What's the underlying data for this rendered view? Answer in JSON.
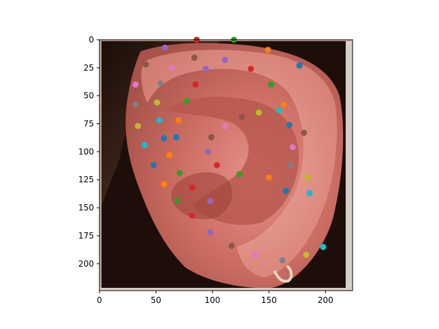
{
  "chart_data": {
    "type": "scatter",
    "title": "",
    "xlabel": "",
    "ylabel": "",
    "xlim": [
      0,
      224
    ],
    "ylim": [
      224,
      0
    ],
    "y_inverted": true,
    "grid": false,
    "legend": "none",
    "background": "image of a human ear (close-up photograph)",
    "xticks": [
      0,
      50,
      100,
      150,
      200
    ],
    "yticks": [
      0,
      25,
      50,
      75,
      100,
      125,
      150,
      175,
      200
    ],
    "palette": [
      "#1f77b4",
      "#ff7f0e",
      "#2ca02c",
      "#d62728",
      "#9467bd",
      "#8c564b",
      "#e377c2",
      "#7f7f7f",
      "#bcbd22",
      "#17becf"
    ],
    "points": [
      {
        "x": 86,
        "y": 0,
        "color": "#d62728"
      },
      {
        "x": 119,
        "y": 0,
        "color": "#2ca02c"
      },
      {
        "x": 58,
        "y": 7,
        "color": "#9467bd"
      },
      {
        "x": 149,
        "y": 9,
        "color": "#ff7f0e"
      },
      {
        "x": 84,
        "y": 16,
        "color": "#8c564b"
      },
      {
        "x": 111,
        "y": 18,
        "color": "#9467bd"
      },
      {
        "x": 41,
        "y": 22,
        "color": "#8c564b"
      },
      {
        "x": 177,
        "y": 23,
        "color": "#1f77b4"
      },
      {
        "x": 64,
        "y": 25,
        "color": "#e377c2"
      },
      {
        "x": 94,
        "y": 26,
        "color": "#9467bd"
      },
      {
        "x": 134,
        "y": 26,
        "color": "#d62728"
      },
      {
        "x": 32,
        "y": 40,
        "color": "#e377c2"
      },
      {
        "x": 54,
        "y": 39,
        "color": "#7f7f7f"
      },
      {
        "x": 85,
        "y": 40,
        "color": "#d62728"
      },
      {
        "x": 152,
        "y": 40,
        "color": "#2ca02c"
      },
      {
        "x": 32,
        "y": 58,
        "color": "#7f7f7f"
      },
      {
        "x": 51,
        "y": 56,
        "color": "#bcbd22"
      },
      {
        "x": 77,
        "y": 55,
        "color": "#2ca02c"
      },
      {
        "x": 163,
        "y": 58,
        "color": "#ff7f0e"
      },
      {
        "x": 159,
        "y": 63,
        "color": "#17becf"
      },
      {
        "x": 141,
        "y": 65,
        "color": "#bcbd22"
      },
      {
        "x": 126,
        "y": 69,
        "color": "#8c564b"
      },
      {
        "x": 53,
        "y": 72,
        "color": "#17becf"
      },
      {
        "x": 70,
        "y": 72,
        "color": "#ff7f0e"
      },
      {
        "x": 34,
        "y": 77,
        "color": "#bcbd22"
      },
      {
        "x": 111,
        "y": 77,
        "color": "#e377c2"
      },
      {
        "x": 168,
        "y": 76,
        "color": "#1f77b4"
      },
      {
        "x": 181,
        "y": 83,
        "color": "#8c564b"
      },
      {
        "x": 57,
        "y": 88,
        "color": "#1f77b4"
      },
      {
        "x": 68,
        "y": 87,
        "color": "#1f77b4"
      },
      {
        "x": 99,
        "y": 87,
        "color": "#8c564b"
      },
      {
        "x": 40,
        "y": 94,
        "color": "#17becf"
      },
      {
        "x": 171,
        "y": 96,
        "color": "#e377c2"
      },
      {
        "x": 96,
        "y": 100,
        "color": "#9467bd"
      },
      {
        "x": 62,
        "y": 103,
        "color": "#ff7f0e"
      },
      {
        "x": 48,
        "y": 112,
        "color": "#1f77b4"
      },
      {
        "x": 104,
        "y": 112,
        "color": "#d62728"
      },
      {
        "x": 169,
        "y": 112,
        "color": "#7f7f7f"
      },
      {
        "x": 71,
        "y": 119,
        "color": "#2ca02c"
      },
      {
        "x": 124,
        "y": 120,
        "color": "#2ca02c"
      },
      {
        "x": 150,
        "y": 123,
        "color": "#ff7f0e"
      },
      {
        "x": 184,
        "y": 123,
        "color": "#bcbd22"
      },
      {
        "x": 57,
        "y": 129,
        "color": "#ff7f0e"
      },
      {
        "x": 82,
        "y": 132,
        "color": "#d62728"
      },
      {
        "x": 165,
        "y": 135,
        "color": "#1f77b4"
      },
      {
        "x": 186,
        "y": 137,
        "color": "#17becf"
      },
      {
        "x": 69,
        "y": 144,
        "color": "#2ca02c"
      },
      {
        "x": 98,
        "y": 144,
        "color": "#9467bd"
      },
      {
        "x": 82,
        "y": 157,
        "color": "#d62728"
      },
      {
        "x": 98,
        "y": 172,
        "color": "#9467bd"
      },
      {
        "x": 117,
        "y": 184,
        "color": "#8c564b"
      },
      {
        "x": 198,
        "y": 185,
        "color": "#17becf"
      },
      {
        "x": 138,
        "y": 192,
        "color": "#e377c2"
      },
      {
        "x": 183,
        "y": 192,
        "color": "#bcbd22"
      },
      {
        "x": 162,
        "y": 197,
        "color": "#7f7f7f"
      }
    ]
  }
}
